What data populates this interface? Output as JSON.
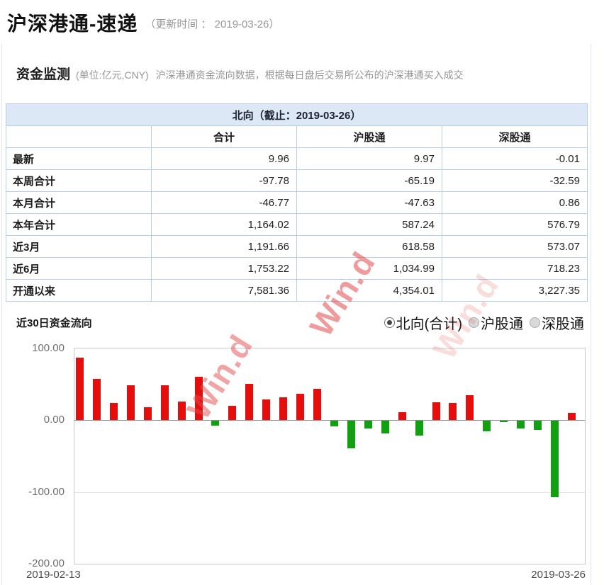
{
  "page": {
    "title": "沪深港通-速递",
    "update_time": "（更新时间 ： 2019-03-26）"
  },
  "section": {
    "title": "资金监测",
    "unit_note": "(单位:亿元,CNY)",
    "description": "沪深港通资金流向数据，根据每日盘后交易所公布的沪深港通买入成交"
  },
  "table": {
    "banner": "北向（截止：2019-03-26）",
    "columns": [
      "",
      "合计",
      "沪股通",
      "深股通"
    ],
    "rows": [
      {
        "label": "最新",
        "values": [
          "9.96",
          "9.97",
          "-0.01"
        ]
      },
      {
        "label": "本周合计",
        "values": [
          "-97.78",
          "-65.19",
          "-32.59"
        ]
      },
      {
        "label": "本月合计",
        "values": [
          "-46.77",
          "-47.63",
          "0.86"
        ]
      },
      {
        "label": "本年合计",
        "values": [
          "1,164.02",
          "587.24",
          "576.79"
        ]
      },
      {
        "label": "近3月",
        "values": [
          "1,191.66",
          "618.58",
          "573.07"
        ]
      },
      {
        "label": "近6月",
        "values": [
          "1,753.22",
          "1,034.99",
          "718.23"
        ]
      },
      {
        "label": "开通以来",
        "values": [
          "7,581.36",
          "4,354.01",
          "3,227.35"
        ]
      }
    ]
  },
  "chart_section": {
    "title": "近30日资金流向",
    "options": [
      {
        "label": "北向(合计)",
        "selected": true
      },
      {
        "label": "沪股通",
        "selected": false
      },
      {
        "label": "深股通",
        "selected": false
      }
    ]
  },
  "chart_data": {
    "type": "bar",
    "title": "近30日资金流向",
    "ylabel": "亿元",
    "ylim": [
      -200,
      100
    ],
    "y_ticks": [
      "100.00",
      "0.00",
      "-100.00",
      "-200.00"
    ],
    "x_start_label": "2019-02-13",
    "x_end_label": "2019-03-26",
    "values": [
      87,
      57,
      24,
      48,
      18,
      48,
      26,
      60,
      -7,
      20,
      50,
      29,
      32,
      37,
      43,
      -8,
      -38,
      -11,
      -18,
      11,
      -21,
      25,
      24,
      35,
      -15,
      -2,
      -11,
      -13,
      -107,
      9.96
    ],
    "colors": {
      "positive": "#e60d0d",
      "negative": "#12a012"
    },
    "legend_position": "none",
    "grid": "horizontal"
  },
  "watermark": {
    "text": "Win.d",
    "color": "#e24b4b"
  }
}
